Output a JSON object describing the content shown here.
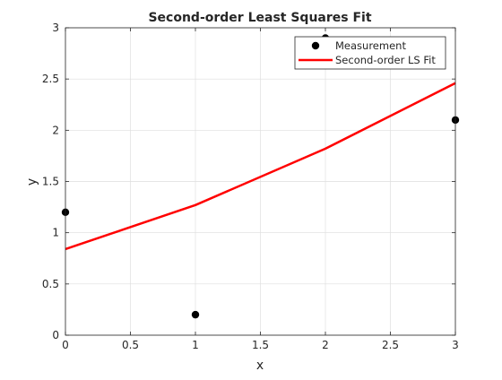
{
  "chart_data": {
    "type": "line",
    "title": "Second-order Least Squares Fit",
    "xlabel": "x",
    "ylabel": "y",
    "xlim": [
      0,
      3
    ],
    "ylim": [
      0,
      3
    ],
    "xticks": [
      0,
      0.5,
      1,
      1.5,
      2,
      2.5,
      3
    ],
    "xtick_labels": [
      "0",
      "0.5",
      "1",
      "1.5",
      "2",
      "2.5",
      "3"
    ],
    "yticks": [
      0,
      0.5,
      1,
      1.5,
      2,
      2.5,
      3
    ],
    "ytick_labels": [
      "0",
      "0.5",
      "1",
      "1.5",
      "2",
      "2.5",
      "3"
    ],
    "grid": true,
    "legend_position": "top-right",
    "series": [
      {
        "name": "Measurement",
        "kind": "scatter",
        "color": "#000000",
        "x": [
          0,
          1,
          2,
          3
        ],
        "y": [
          1.2,
          0.2,
          2.9,
          2.1
        ]
      },
      {
        "name": "Second-order LS Fit",
        "kind": "line",
        "color": "#ff0000",
        "x": [
          0,
          1,
          2,
          3
        ],
        "y": [
          0.84,
          1.27,
          1.82,
          2.46
        ]
      }
    ]
  }
}
